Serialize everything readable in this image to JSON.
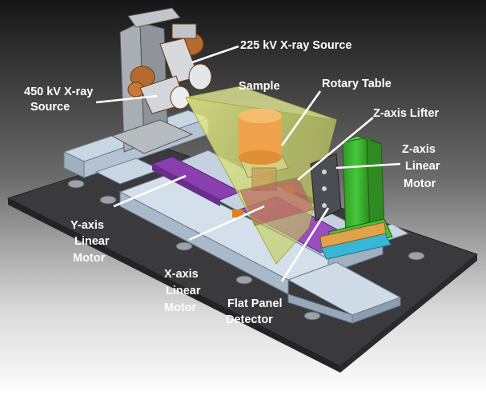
{
  "labels": {
    "source_225": "225 kV X-ray Source",
    "source_450_line1": "450 kV X-ray",
    "source_450_line2": "Source",
    "sample": "Sample",
    "rotary_table": "Rotary Table",
    "z_lifter": "Z-axis Lifter",
    "z_motor_line1": "Z-axis",
    "z_motor_line2": "Linear",
    "z_motor_line3": "Motor",
    "y_motor_line1": "Y-axis",
    "y_motor_line2": "Linear",
    "y_motor_line3": "Motor",
    "x_motor_line1": "X-axis",
    "x_motor_line2": "Linear",
    "x_motor_line3": "Motor",
    "detector_line1": "Flat Panel",
    "detector_line2": "Detector"
  },
  "colors": {
    "background_top": "#1a1a1a",
    "background_bottom": "#ffffff",
    "base_plate": "#3a3a3c",
    "rail": "#c9d6e3",
    "beam_cone": "#d9e36a",
    "sample": "#f0a24a",
    "linear_motor": "#8a3fb0",
    "z_column": "#39b42c",
    "detector_mount": "#37b6d6",
    "label_text": "#ffffff"
  }
}
